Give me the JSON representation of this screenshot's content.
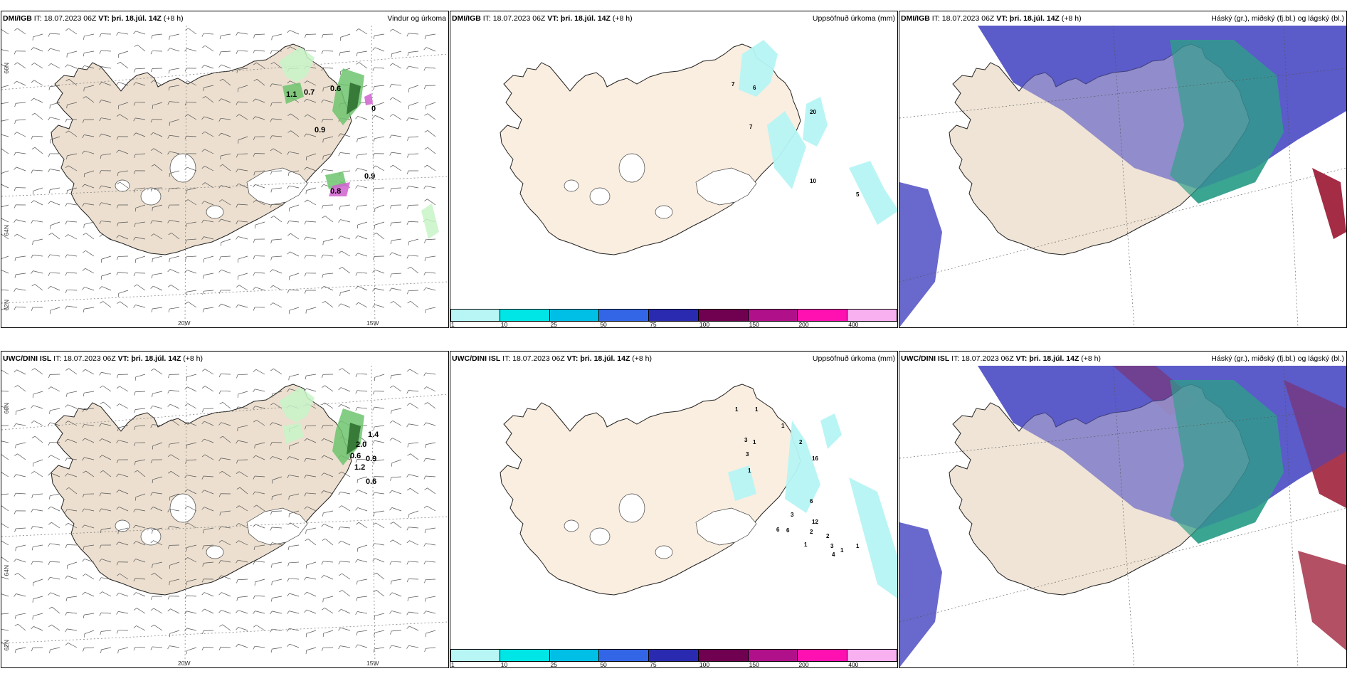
{
  "colors": {
    "land": "#ecdfcf",
    "land_light": "#faeee0",
    "precip_light": "#c8f4c8",
    "precip_mid": "#6fc46f",
    "precip_dark": "#2a6b2a",
    "precip_purple": "#d060d0",
    "acc_light": "#b6f4f4",
    "cloud_high": "#5858c8",
    "cloud_mid": "#2fa08a",
    "cloud_low": "#9a1530"
  },
  "panels": [
    {
      "id": "dmi-wind",
      "model": "DMI/IGB",
      "it_label": "IT:",
      "it_value": "18.07.2023 06Z",
      "vt_label": "VT:",
      "vt_value": "þri. 18.júl. 14Z",
      "lead": "(+8 h)",
      "title": "Vindur og úrkoma",
      "type": "wind",
      "labels": [
        "1.1",
        "0.7",
        "0.6",
        "0.9",
        "0",
        "0.9",
        "0.8"
      ],
      "lon_labels": [
        "20W",
        "15W"
      ],
      "lat_labels": [
        "66N",
        "64N",
        "62N"
      ]
    },
    {
      "id": "dmi-acc",
      "model": "DMI/IGB",
      "it_label": "IT:",
      "it_value": "18.07.2023 06Z",
      "vt_label": "VT:",
      "vt_value": "þri. 18.júl. 14Z",
      "lead": "(+8 h)",
      "title": "Uppsöfnuð úrkoma (mm)",
      "type": "acc",
      "labels": [
        "7",
        "6",
        "7",
        "20",
        "10",
        "5"
      ]
    },
    {
      "id": "dmi-cloud",
      "model": "DMI/IGB",
      "it_label": "IT:",
      "it_value": "18.07.2023 06Z",
      "vt_label": "VT:",
      "vt_value": "þri. 18.júl. 14Z",
      "lead": "(+8 h)",
      "title": "Háský (gr.), miðský (fj.bl.) og lágský (bl.)",
      "type": "cloud"
    },
    {
      "id": "uwc-wind",
      "model": "UWC/DINI ISL",
      "it_label": "IT:",
      "it_value": "18.07.2023 06Z",
      "vt_label": "VT:",
      "vt_value": "þri. 18.júl. 14Z",
      "lead": "(+8 h)",
      "title": "",
      "type": "wind",
      "labels": [
        "1.4",
        "2.0",
        "0.6",
        "0.9",
        "1.2",
        "0.6"
      ],
      "lon_labels": [
        "20W",
        "15W"
      ],
      "lat_labels": [
        "66N",
        "64N",
        "62N"
      ]
    },
    {
      "id": "uwc-acc",
      "model": "UWC/DINI ISL",
      "it_label": "IT:",
      "it_value": "18.07.2023 06Z",
      "vt_label": "VT:",
      "vt_value": "þri. 18.júl. 14Z",
      "lead": "(+8 h)",
      "title": "Uppsöfnuð úrkoma (mm)",
      "type": "acc",
      "labels": [
        "1",
        "1",
        "1",
        "3",
        "1",
        "2",
        "3",
        "1",
        "16",
        "6",
        "3",
        "12",
        "6",
        "6",
        "2",
        "1",
        "3",
        "2",
        "4",
        "1",
        "1"
      ]
    },
    {
      "id": "uwc-cloud",
      "model": "UWC/DINI ISL",
      "it_label": "IT:",
      "it_value": "18.07.2023 06Z",
      "vt_label": "VT:",
      "vt_value": "þri. 18.júl. 14Z",
      "lead": "(+8 h)",
      "title": "Háský (gr.), miðský (fj.bl.) og lágský (bl.)",
      "type": "cloud"
    }
  ],
  "precip_legend": {
    "colors": [
      "#b8f6f6",
      "#00e6e6",
      "#00bfe6",
      "#3366e6",
      "#2a2ab0",
      "#700050",
      "#b0108a",
      "#ff10b0",
      "#f8b0f0"
    ],
    "labels": [
      "1",
      "10",
      "25",
      "50",
      "75",
      "100",
      "150",
      "200",
      "400"
    ]
  }
}
